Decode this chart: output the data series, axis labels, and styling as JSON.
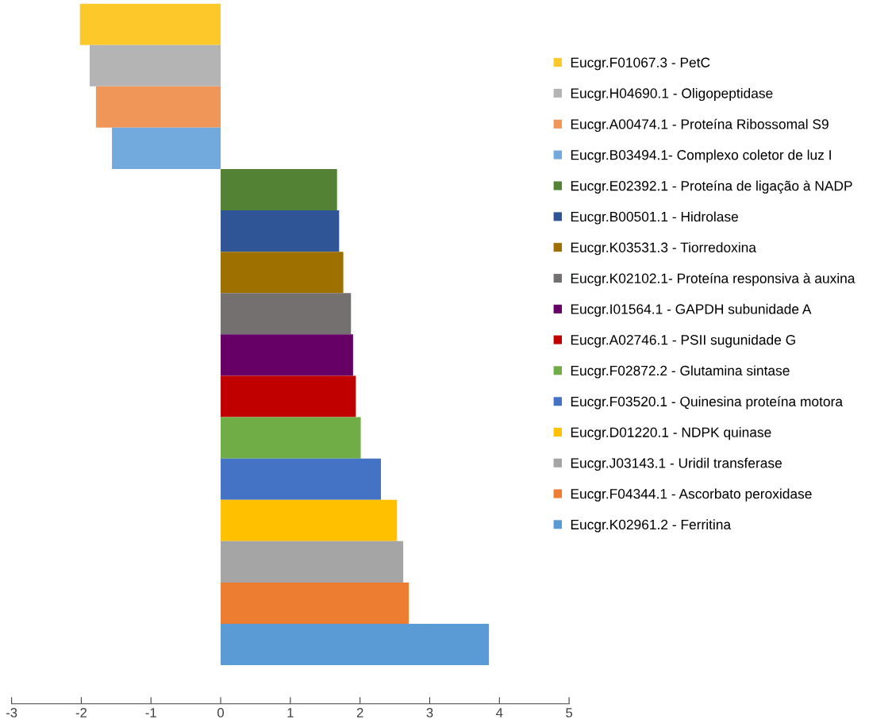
{
  "chart_data": {
    "type": "bar",
    "orientation": "horizontal",
    "categories": [
      null
    ],
    "series": [
      {
        "name": "Eucgr.F01067.3 - PetC",
        "color": "#fcc82a",
        "values": [
          -2.02
        ]
      },
      {
        "name": "Eucgr.H04690.1 - Oligopeptidase",
        "color": "#b4b4b4",
        "values": [
          -1.88
        ]
      },
      {
        "name": "Eucgr.A00474.1 - Proteína Ribossomal S9",
        "color": "#f19659",
        "values": [
          -1.79
        ]
      },
      {
        "name": "Eucgr.B03494.1- Complexo coletor de luz I",
        "color": "#72aadd",
        "values": [
          -1.56
        ]
      },
      {
        "name": "Eucgr.E02392.1 - Proteína de ligação à NADP",
        "color": "#548235",
        "values": [
          1.67
        ]
      },
      {
        "name": "Eucgr.B00501.1 - Hidrolase",
        "color": "#2f5597",
        "values": [
          1.7
        ]
      },
      {
        "name": "Eucgr.K03531.3 - Tiorredoxina",
        "color": "#9e7000",
        "values": [
          1.76
        ]
      },
      {
        "name": "Eucgr.K02102.1- Proteína responsiva à auxina",
        "color": "#747070",
        "values": [
          1.87
        ]
      },
      {
        "name": "Eucgr.I01564.1 - GAPDH subunidade A",
        "color": "#660066",
        "values": [
          1.9
        ]
      },
      {
        "name": "Eucgr.A02746.1 - PSII sugunidade G",
        "color": "#c00000",
        "values": [
          1.94
        ]
      },
      {
        "name": "Eucgr.F02872.2 - Glutamina sintase",
        "color": "#70ad47",
        "values": [
          2.01
        ]
      },
      {
        "name": "Eucgr.F03520.1 - Quinesina proteína motora",
        "color": "#4472c4",
        "values": [
          2.3
        ]
      },
      {
        "name": "Eucgr.D01220.1 - NDPK quinase",
        "color": "#ffc000",
        "values": [
          2.53
        ]
      },
      {
        "name": "Eucgr.J03143.1 - Uridil transferase",
        "color": "#a5a5a5",
        "values": [
          2.62
        ]
      },
      {
        "name": "Eucgr.F04344.1 - Ascorbato peroxidase",
        "color": "#ed7d31",
        "values": [
          2.7
        ]
      },
      {
        "name": "Eucgr.K02961.2 - Ferritina",
        "color": "#5b9bd5",
        "values": [
          3.85
        ]
      }
    ],
    "xlim": [
      -3,
      5
    ],
    "xticks": [
      -3,
      -2,
      -1,
      0,
      1,
      2,
      3,
      4,
      5
    ],
    "tick_labels": "x",
    "grid": false,
    "legend": "right"
  }
}
